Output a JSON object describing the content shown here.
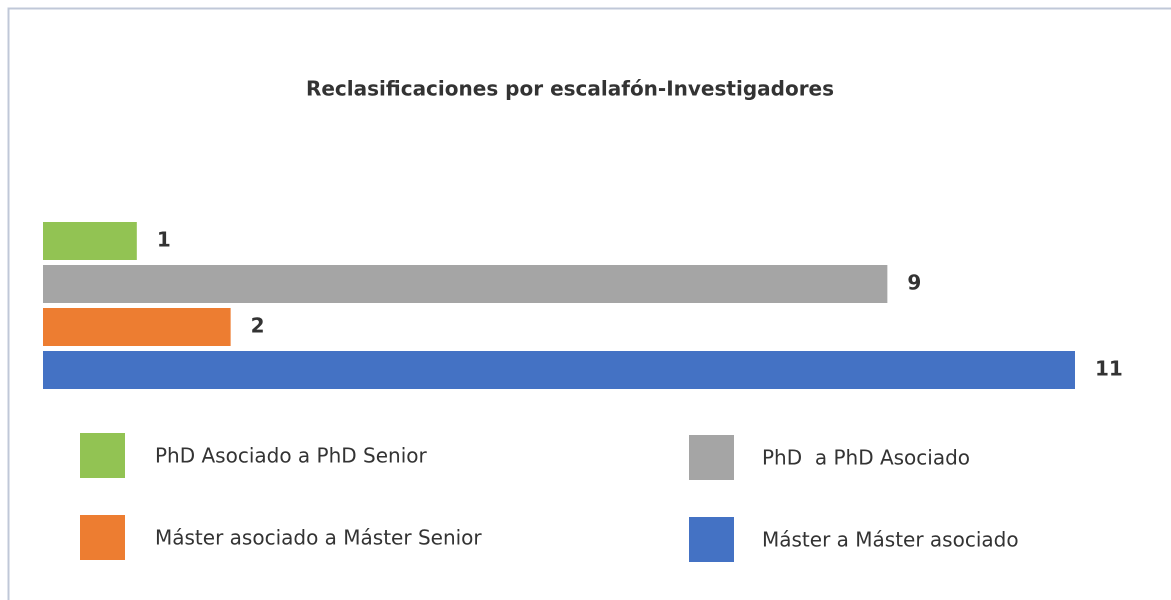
{
  "chart_data": {
    "type": "barh",
    "title": "Reclasificaciones por escalafón-Investigadores",
    "categories": [
      "PhD Asociado a PhD Senior",
      "PhD  a PhD Asociado",
      "Máster asociado a Máster Senior",
      "Máster a Máster asociado"
    ],
    "values": [
      1,
      9,
      2,
      11
    ],
    "colors": [
      "#92c353",
      "#a5a5a5",
      "#ed7d31",
      "#4472c4"
    ]
  }
}
